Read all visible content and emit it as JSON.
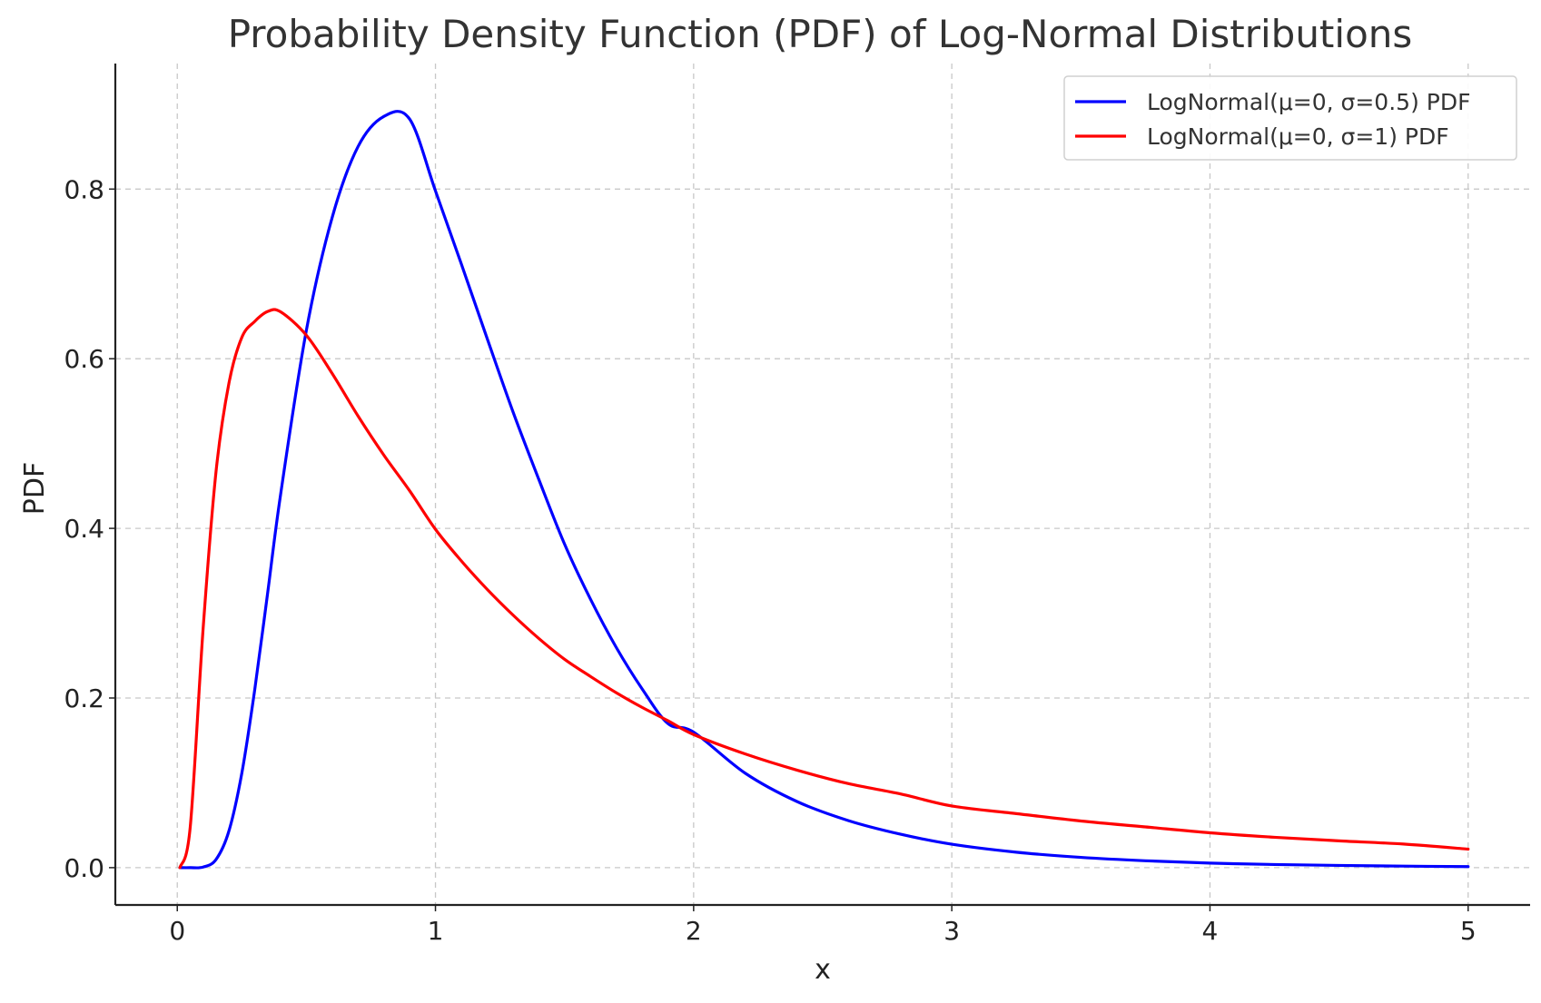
{
  "chart_data": {
    "type": "line",
    "title": "Probability Density Function (PDF) of Log-Normal Distributions",
    "xlabel": "x",
    "ylabel": "PDF",
    "xlim": [
      -0.24,
      5.24
    ],
    "ylim": [
      -0.044,
      0.948
    ],
    "x_ticks": [
      0,
      1,
      2,
      3,
      4,
      5
    ],
    "x_tick_labels": [
      "0",
      "1",
      "2",
      "3",
      "4",
      "5"
    ],
    "y_ticks": [
      0.0,
      0.2,
      0.4,
      0.6,
      0.8
    ],
    "y_tick_labels": [
      "0.0",
      "0.2",
      "0.4",
      "0.6",
      "0.8"
    ],
    "grid": true,
    "legend_position": "top-right",
    "x": [
      0.01,
      0.05,
      0.1,
      0.15,
      0.2,
      0.25,
      0.3,
      0.35,
      0.4,
      0.5,
      0.6,
      0.7,
      0.8,
      0.9,
      1.0,
      1.1,
      1.2,
      1.3,
      1.4,
      1.5,
      1.6,
      1.7,
      1.8,
      1.9,
      2.0,
      2.2,
      2.4,
      2.6,
      2.8,
      3.0,
      3.25,
      3.5,
      3.75,
      4.0,
      4.25,
      4.5,
      4.75,
      5.0
    ],
    "series": [
      {
        "name": "LogNormal(μ=0, σ=0.5) PDF",
        "color": "#0000ff",
        "values": [
          0.0,
          0.0,
          0.0007,
          0.0096,
          0.0432,
          0.1114,
          0.2098,
          0.3238,
          0.4396,
          0.6335,
          0.7666,
          0.85,
          0.8856,
          0.8825,
          0.7979,
          0.7119,
          0.6241,
          0.5377,
          0.458,
          0.3815,
          0.3168,
          0.2598,
          0.211,
          0.17,
          0.1598,
          0.1113,
          0.078,
          0.0554,
          0.0395,
          0.0276,
          0.0182,
          0.0121,
          0.0081,
          0.0054,
          0.0037,
          0.0026,
          0.0018,
          0.0012
        ]
      },
      {
        "name": "LogNormal(μ=0, σ=1) PDF",
        "color": "#ff0000",
        "values": [
          0.0,
          0.0475,
          0.2815,
          0.4667,
          0.571,
          0.6251,
          0.644,
          0.6557,
          0.6553,
          0.6276,
          0.5826,
          0.5325,
          0.4864,
          0.4443,
          0.3989,
          0.3617,
          0.3282,
          0.2979,
          0.2703,
          0.2457,
          0.2255,
          0.2063,
          0.189,
          0.1733,
          0.1569,
          0.134,
          0.115,
          0.099,
          0.087,
          0.0727,
          0.0637,
          0.055,
          0.048,
          0.0411,
          0.0358,
          0.0316,
          0.0278,
          0.0218
        ]
      }
    ]
  }
}
